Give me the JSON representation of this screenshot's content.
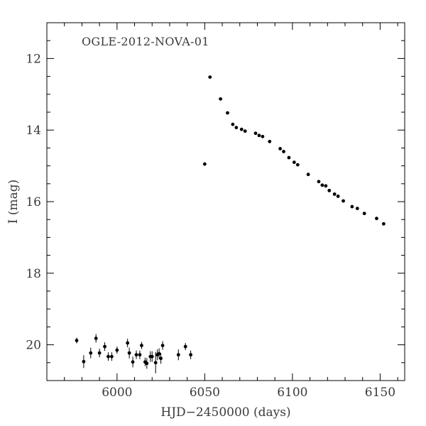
{
  "chart_data": {
    "type": "scatter",
    "title": "OGLE-2012-NOVA-01",
    "xlabel": "HJD−2450000 (days)",
    "ylabel": "I (mag)",
    "xlim": [
      5960,
      6164
    ],
    "ylim": [
      21.0,
      11.0
    ],
    "y_inverted": true,
    "x_major_ticks": [
      6000,
      6050,
      6100,
      6150
    ],
    "x_tick_labels": [
      "6000",
      "6050",
      "6100",
      "6150"
    ],
    "x_minor_step": 10,
    "y_major_ticks": [
      12,
      14,
      16,
      18,
      20
    ],
    "y_tick_labels": [
      "12",
      "14",
      "16",
      "18",
      "20"
    ],
    "y_minor_step": 0.5,
    "grid": false,
    "legend": "none",
    "marker_color": "#000000",
    "points": [
      {
        "x": 5977,
        "y": 19.88,
        "err": 0.08
      },
      {
        "x": 5981,
        "y": 20.47,
        "err": 0.18
      },
      {
        "x": 5985,
        "y": 20.23,
        "err": 0.15
      },
      {
        "x": 5988,
        "y": 19.82,
        "err": 0.12
      },
      {
        "x": 5990,
        "y": 20.23,
        "err": 0.12
      },
      {
        "x": 5993,
        "y": 20.05,
        "err": 0.12
      },
      {
        "x": 5995,
        "y": 20.33,
        "err": 0.12
      },
      {
        "x": 5997,
        "y": 20.33,
        "err": 0.12
      },
      {
        "x": 6000,
        "y": 20.15,
        "err": 0.1
      },
      {
        "x": 6006,
        "y": 19.95,
        "err": 0.12
      },
      {
        "x": 6007,
        "y": 20.23,
        "err": 0.15
      },
      {
        "x": 6009,
        "y": 20.48,
        "err": 0.15
      },
      {
        "x": 6011,
        "y": 20.28,
        "err": 0.12
      },
      {
        "x": 6013,
        "y": 20.28,
        "err": 0.12
      },
      {
        "x": 6014,
        "y": 20.02,
        "err": 0.1
      },
      {
        "x": 6016,
        "y": 20.48,
        "err": 0.12
      },
      {
        "x": 6017,
        "y": 20.52,
        "err": 0.15
      },
      {
        "x": 6019,
        "y": 20.33,
        "err": 0.15
      },
      {
        "x": 6020,
        "y": 20.33,
        "err": 0.15
      },
      {
        "x": 6022,
        "y": 20.5,
        "err": 0.3
      },
      {
        "x": 6023,
        "y": 20.28,
        "err": 0.15
      },
      {
        "x": 6024,
        "y": 20.25,
        "err": 0.15
      },
      {
        "x": 6025,
        "y": 20.38,
        "err": 0.15
      },
      {
        "x": 6026,
        "y": 20.02,
        "err": 0.12
      },
      {
        "x": 6035,
        "y": 20.28,
        "err": 0.15
      },
      {
        "x": 6039,
        "y": 20.05,
        "err": 0.1
      },
      {
        "x": 6042,
        "y": 20.28,
        "err": 0.12
      },
      {
        "x": 6050,
        "y": 14.95
      },
      {
        "x": 6053,
        "y": 12.52
      },
      {
        "x": 6059,
        "y": 13.13
      },
      {
        "x": 6063,
        "y": 13.52
      },
      {
        "x": 6066,
        "y": 13.84
      },
      {
        "x": 6068,
        "y": 13.93
      },
      {
        "x": 6071,
        "y": 13.98
      },
      {
        "x": 6073,
        "y": 14.03
      },
      {
        "x": 6079,
        "y": 14.09
      },
      {
        "x": 6081,
        "y": 14.15
      },
      {
        "x": 6083,
        "y": 14.18
      },
      {
        "x": 6087,
        "y": 14.32
      },
      {
        "x": 6093,
        "y": 14.52
      },
      {
        "x": 6095,
        "y": 14.6
      },
      {
        "x": 6098,
        "y": 14.77
      },
      {
        "x": 6101,
        "y": 14.9
      },
      {
        "x": 6103,
        "y": 14.97
      },
      {
        "x": 6109,
        "y": 15.24
      },
      {
        "x": 6115,
        "y": 15.44
      },
      {
        "x": 6117,
        "y": 15.54
      },
      {
        "x": 6119,
        "y": 15.56
      },
      {
        "x": 6121,
        "y": 15.69
      },
      {
        "x": 6124,
        "y": 15.79
      },
      {
        "x": 6126,
        "y": 15.85
      },
      {
        "x": 6129,
        "y": 15.98
      },
      {
        "x": 6134,
        "y": 16.14
      },
      {
        "x": 6137,
        "y": 16.19
      },
      {
        "x": 6141,
        "y": 16.33
      },
      {
        "x": 6148,
        "y": 16.47
      },
      {
        "x": 6152,
        "y": 16.62
      }
    ]
  }
}
